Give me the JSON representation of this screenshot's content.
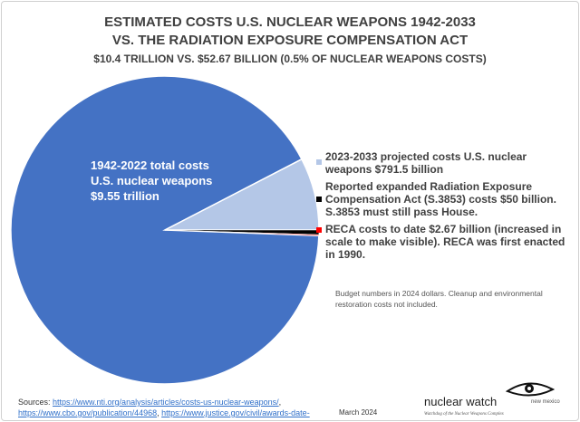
{
  "chart_data": {
    "type": "pie",
    "title": "ESTIMATED COSTS U.S. NUCLEAR WEAPONS 1942-2033",
    "subtitle_1": "VS. THE RADIATION EXPOSURE COMPENSATION ACT",
    "subtitle_2": "$10.4 TRILLION VS. $52.67 BILLION (0.5% OF NUCLEAR WEAPONS COSTS)",
    "unit": "billion USD (2024 dollars)",
    "slices": [
      {
        "label": "1942-2022 total costs U.S. nuclear weapons $9.55 trillion",
        "value": 9550,
        "color": "#4472c4"
      },
      {
        "label": "2023-2033 projected costs U.S. nuclear weapons $791.5 billion",
        "value": 791.5,
        "color": "#b4c7e7"
      },
      {
        "label": "Reported expanded Radiation Exposure Compensation Act (S.3853) costs $50 billion. S.3853 must still pass House.",
        "value": 50,
        "color": "#000000"
      },
      {
        "label": "RECA costs to date $2.67 billion (increased in scale to make visible). RECA was first enacted in 1990.",
        "value": 2.67,
        "color": "#ff0000"
      }
    ],
    "inside_label": [
      "1942-2022 total costs",
      "U.S. nuclear weapons",
      "$9.55 trillion"
    ],
    "legend_placement": "right"
  },
  "note": "Budget numbers in 2024 dollars. Cleanup and environmental restoration costs not included.",
  "sources": {
    "prefix": "Sources: ",
    "links": [
      "https://www.nti.org/analysis/articles/costs-us-nuclear-weapons/",
      "https://www.cbo.gov/publication/44968",
      "https://www.justice.gov/civil/awards-date-03042024"
    ]
  },
  "date": "March 2024",
  "logo": {
    "name": "nuclear watch",
    "region": "new mexico",
    "tagline": "Watchdog of the Nuclear Weapons Complex"
  }
}
